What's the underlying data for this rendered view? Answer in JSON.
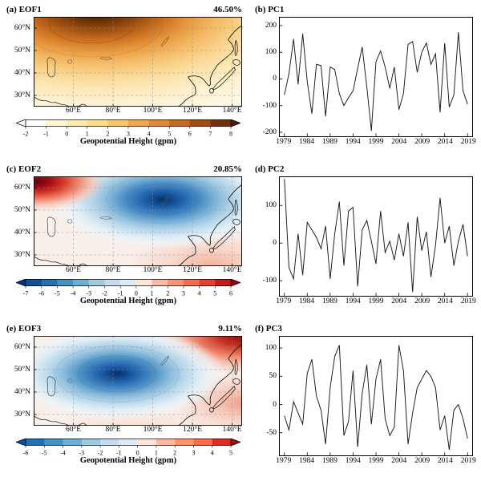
{
  "chart_data": [
    {
      "type": "heatmap",
      "panel": "a",
      "label": "(a) EOF1",
      "variance": "46.50%",
      "lat_ticks": [
        "60°N",
        "50°N",
        "40°N",
        "30°N"
      ],
      "lon_ticks": [
        "60°E",
        "80°E",
        "100°E",
        "120°E",
        "140°E"
      ],
      "pattern": "Monosigned positive pattern; maximum (>8 gpm, dark brown) centered near 60-90°E, 55-65°N over northwest domain, decreasing southeastward to near 0 gpm at the southeast corner",
      "colorbar": {
        "label": "Geopotential Height (gpm)",
        "ticks": [
          "-2",
          "-1",
          "0",
          "1",
          "2",
          "3",
          "4",
          "5",
          "6",
          "7",
          "8"
        ],
        "colors": [
          "#ffffff",
          "#fdf6d8",
          "#fcecb0",
          "#fbdd8a",
          "#f9c768",
          "#f2a94b",
          "#e18a30",
          "#c9691c",
          "#a44b0e",
          "#723106"
        ],
        "left_arrow": "#ffffff",
        "right_arrow": "#4c2004"
      }
    },
    {
      "type": "line",
      "panel": "b",
      "label": "(b) PC1",
      "x": [
        1979,
        1980,
        1981,
        1982,
        1983,
        1984,
        1985,
        1986,
        1987,
        1988,
        1989,
        1990,
        1991,
        1992,
        1993,
        1994,
        1995,
        1996,
        1997,
        1998,
        1999,
        2000,
        2001,
        2002,
        2003,
        2004,
        2005,
        2006,
        2007,
        2008,
        2009,
        2010,
        2011,
        2012,
        2013,
        2014,
        2015,
        2016,
        2017,
        2018,
        2019
      ],
      "values": [
        -60,
        20,
        150,
        -20,
        170,
        -10,
        -130,
        55,
        50,
        -140,
        45,
        35,
        -55,
        -100,
        -70,
        -45,
        40,
        120,
        -30,
        -195,
        65,
        105,
        45,
        -35,
        45,
        -115,
        -55,
        130,
        140,
        25,
        100,
        135,
        55,
        95,
        -125,
        135,
        -105,
        -60,
        175,
        -45,
        -95
      ],
      "ylim": [
        -215,
        230
      ],
      "yticks": [
        200,
        100,
        0,
        -100,
        -200
      ],
      "xticks": [
        1979,
        1984,
        1989,
        1994,
        1999,
        2004,
        2009,
        2014,
        2019
      ]
    },
    {
      "type": "heatmap",
      "panel": "c",
      "label": "(c) EOF2",
      "variance": "20.85%",
      "lat_ticks": [
        "60°N",
        "50°N",
        "40°N",
        "30°N"
      ],
      "lon_ticks": [
        "60°E",
        "80°E",
        "100°E",
        "120°E",
        "140°E"
      ],
      "pattern": "Dipole: strong positive center (red, >6 gpm) at northwest corner near 40-55°E, 55-65°N; large negative center (dark blue, <-7 gpm) spanning 90-140°E around 50-60°N; weak positive band along the south",
      "colorbar": {
        "label": "Geopotential Height (gpm)",
        "ticks": [
          "-7",
          "-6",
          "-5",
          "-4",
          "-3",
          "-2",
          "-1",
          "0",
          "1",
          "2",
          "3",
          "4",
          "5",
          "6"
        ],
        "colors": [
          "#08519c",
          "#2171b5",
          "#4292c6",
          "#6baed6",
          "#9ecae1",
          "#c6dbef",
          "#deebf7",
          "#fee5db",
          "#fcbba1",
          "#fc9272",
          "#fb6a4a",
          "#ef3b2c",
          "#cb181d"
        ],
        "left_arrow": "#08306b",
        "right_arrow": "#99000d"
      }
    },
    {
      "type": "line",
      "panel": "d",
      "label": "(d) PC2",
      "x": [
        1979,
        1980,
        1981,
        1982,
        1983,
        1984,
        1985,
        1986,
        1987,
        1988,
        1989,
        1990,
        1991,
        1992,
        1993,
        1994,
        1995,
        1996,
        1997,
        1998,
        1999,
        2000,
        2001,
        2002,
        2003,
        2004,
        2005,
        2006,
        2007,
        2008,
        2009,
        2010,
        2011,
        2012,
        2013,
        2014,
        2015,
        2016,
        2017,
        2018,
        2019
      ],
      "values": [
        170,
        -65,
        -95,
        25,
        -85,
        55,
        35,
        15,
        -15,
        45,
        -95,
        25,
        110,
        -60,
        85,
        95,
        -115,
        35,
        60,
        5,
        -55,
        85,
        -25,
        5,
        -45,
        25,
        -35,
        55,
        -130,
        70,
        -20,
        30,
        -90,
        -5,
        120,
        0,
        45,
        -60,
        5,
        50,
        -35
      ],
      "ylim": [
        -140,
        175
      ],
      "yticks": [
        100,
        0,
        -100
      ],
      "xticks": [
        1979,
        1984,
        1989,
        1994,
        1999,
        2004,
        2009,
        2014,
        2019
      ]
    },
    {
      "type": "heatmap",
      "panel": "e",
      "label": "(e) EOF3",
      "variance": "9.11%",
      "lat_ticks": [
        "60°N",
        "50°N",
        "40°N",
        "30°N"
      ],
      "lon_ticks": [
        "60°E",
        "80°E",
        "100°E",
        "120°E",
        "140°E"
      ],
      "pattern": "Negative center (dark blue, <-6 gpm) over central domain near 70-95°E, 40-55°N; positive centers (red, >5 gpm) at northeast corner near 120-145°E, 55-65°N and weaker positives along south and east edges",
      "colorbar": {
        "label": "Geopotential Height (gpm)",
        "ticks": [
          "-6",
          "-5",
          "-4",
          "-3",
          "-2",
          "-1",
          "0",
          "1",
          "2",
          "3",
          "4",
          "5"
        ],
        "colors": [
          "#2171b5",
          "#4292c6",
          "#6baed6",
          "#9ecae1",
          "#c6dbef",
          "#deebf7",
          "#fee5db",
          "#fcbba1",
          "#fc9272",
          "#fb6a4a",
          "#de2d26"
        ],
        "left_arrow": "#08519c",
        "right_arrow": "#a50f15"
      }
    },
    {
      "type": "line",
      "panel": "f",
      "label": "(f) PC3",
      "x": [
        1979,
        1980,
        1981,
        1982,
        1983,
        1984,
        1985,
        1986,
        1987,
        1988,
        1989,
        1990,
        1991,
        1992,
        1993,
        1994,
        1995,
        1996,
        1997,
        1998,
        1999,
        2000,
        2001,
        2002,
        2003,
        2004,
        2005,
        2006,
        2007,
        2008,
        2009,
        2010,
        2011,
        2012,
        2013,
        2014,
        2015,
        2016,
        2017,
        2018,
        2019
      ],
      "values": [
        -20,
        -45,
        5,
        -15,
        -35,
        55,
        80,
        15,
        -10,
        -70,
        30,
        85,
        105,
        -55,
        -30,
        60,
        -75,
        20,
        70,
        -35,
        45,
        80,
        -25,
        -55,
        -40,
        105,
        60,
        -70,
        -15,
        30,
        45,
        60,
        50,
        30,
        -45,
        -20,
        -80,
        -10,
        0,
        -25,
        -60
      ],
      "ylim": [
        -90,
        120
      ],
      "yticks": [
        100,
        50,
        0,
        -50
      ],
      "xticks": [
        1979,
        1984,
        1989,
        1994,
        1999,
        2004,
        2009,
        2014,
        2019
      ]
    }
  ]
}
